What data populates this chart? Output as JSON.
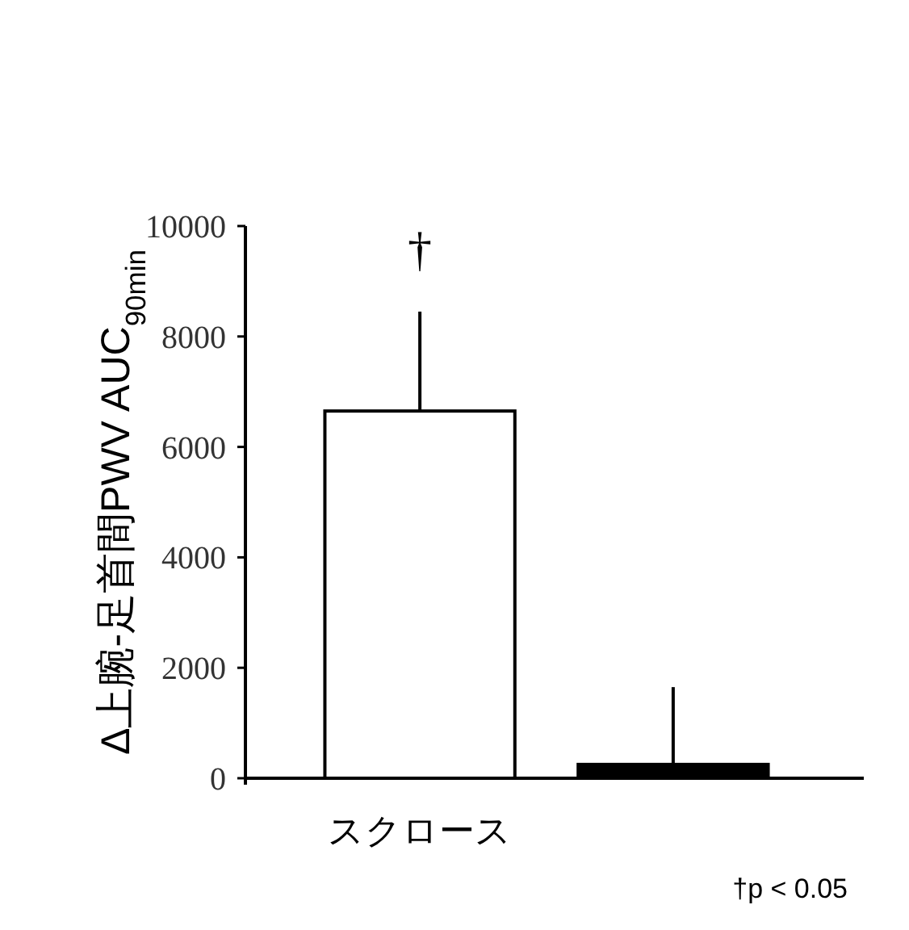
{
  "chart_data": {
    "type": "bar",
    "ylabel": "Δ上腕-足首間PWV AUC$_{90min}$",
    "categories": [
      "スクロース",
      null
    ],
    "series": [
      {
        "colors": [
          "#ffffff",
          "#000000"
        ],
        "values": [
          6650,
          250
        ],
        "errors": [
          [
            6650,
            8450
          ],
          [
            250,
            1650
          ]
        ]
      }
    ],
    "ylim": [
      0,
      10000
    ],
    "yticks": [
      0,
      2000,
      4000,
      6000,
      8000,
      10000
    ],
    "annotations": [
      "†",
      "†p < 0.05"
    ]
  }
}
